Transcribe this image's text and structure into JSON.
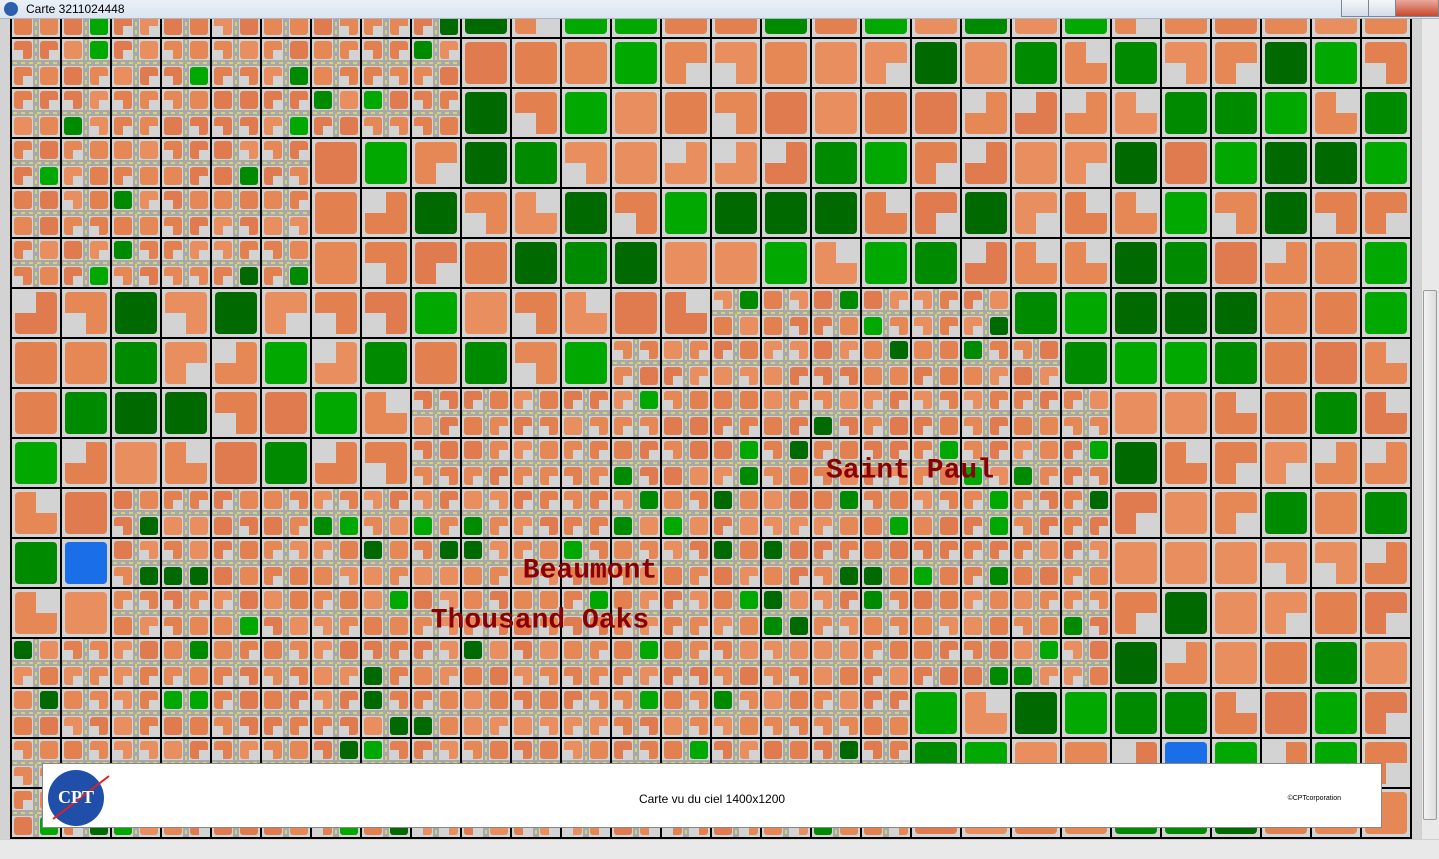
{
  "window": {
    "title": "Carte 3211024448"
  },
  "map": {
    "cities": [
      "Saint Paul",
      "Beaumont",
      "Thousand Oaks"
    ]
  },
  "footer": {
    "logo": "CPT",
    "caption": "Carte vu du ciel 1400x1200",
    "copyright": "©CPTcorporation"
  }
}
